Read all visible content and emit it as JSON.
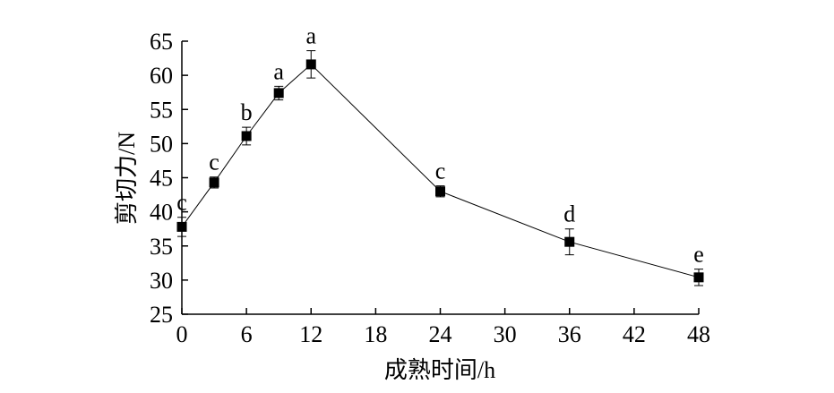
{
  "chart_data": {
    "type": "line",
    "xlabel": "成熟时间/h",
    "ylabel": "剪切力/N",
    "x": [
      0,
      3,
      6,
      9,
      12,
      24,
      36,
      48
    ],
    "series": [
      {
        "color": "#000000",
        "values": [
          37.8,
          44.3,
          51.1,
          57.4,
          61.6,
          43.0,
          35.6,
          30.4
        ],
        "errors": [
          1.4,
          0.8,
          1.3,
          1.0,
          2.0,
          0.8,
          1.9,
          1.2
        ],
        "annotations": [
          "c",
          "c",
          "b",
          "a",
          "a",
          "c",
          "d",
          "e"
        ]
      }
    ],
    "xlim": [
      0,
      48
    ],
    "xticks": [
      0,
      6,
      12,
      18,
      24,
      30,
      36,
      42,
      48
    ],
    "ylim": [
      25,
      65
    ],
    "yticks": [
      25,
      30,
      35,
      40,
      45,
      50,
      55,
      60,
      65
    ],
    "grid": false
  }
}
